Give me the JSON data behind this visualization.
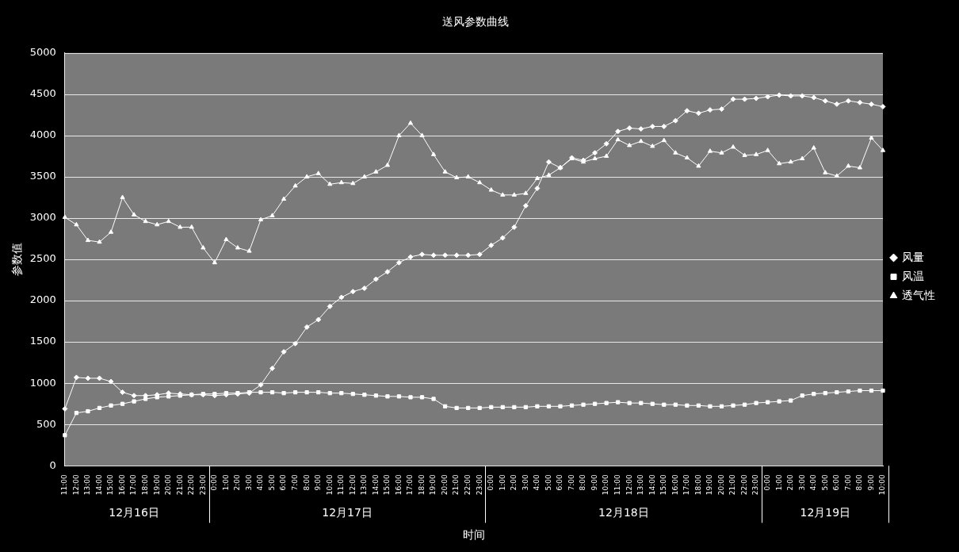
{
  "chart_data": {
    "type": "line",
    "title": "送风参数曲线",
    "xlabel": "时间",
    "ylabel": "参数值",
    "categories": [
      "11:00",
      "12:00",
      "13:00",
      "14:00",
      "15:00",
      "16:00",
      "17:00",
      "18:00",
      "19:00",
      "20:00",
      "21:00",
      "22:00",
      "23:00",
      "0:00",
      "1:00",
      "2:00",
      "3:00",
      "4:00",
      "5:00",
      "6:00",
      "7:00",
      "8:00",
      "9:00",
      "10:00",
      "11:00",
      "12:00",
      "13:00",
      "14:00",
      "15:00",
      "16:00",
      "17:00",
      "18:00",
      "19:00",
      "20:00",
      "21:00",
      "22:00",
      "23:00",
      "0:00",
      "1:00",
      "2:00",
      "3:00",
      "4:00",
      "5:00",
      "6:00",
      "7:00",
      "8:00",
      "9:00",
      "10:00",
      "11:00",
      "12:00",
      "13:00",
      "14:00",
      "15:00",
      "16:00",
      "17:00",
      "18:00",
      "19:00",
      "20:00",
      "21:00",
      "22:00",
      "23:00",
      "0:00",
      "1:00",
      "2:00",
      "3:00",
      "4:00",
      "5:00",
      "6:00",
      "7:00",
      "8:00",
      "9:00",
      "10:00"
    ],
    "annotations": [
      "12月16日",
      "12月17日",
      "12月18日",
      "12月19日"
    ],
    "series": [
      {
        "name": "风量",
        "color": "#ffffff",
        "marker": "diamond",
        "values": [
          690,
          1070,
          1060,
          1060,
          1020,
          890,
          850,
          850,
          860,
          880,
          870,
          860,
          860,
          850,
          860,
          870,
          880,
          980,
          1180,
          1380,
          1480,
          1680,
          1770,
          1930,
          2040,
          2110,
          2150,
          2260,
          2350,
          2460,
          2530,
          2560,
          2550,
          2550,
          2550,
          2550,
          2560,
          2670,
          2760,
          2890,
          3150,
          3360,
          3680,
          3610,
          3730,
          3700,
          3790,
          3900,
          4050,
          4090,
          4080,
          4110,
          4110,
          4180,
          4300,
          4270,
          4310,
          4320,
          4440,
          4440,
          4450,
          4470,
          4490,
          4480,
          4480,
          4460,
          4420,
          4380,
          4420,
          4400,
          4380,
          4350
        ]
      },
      {
        "name": "风温",
        "color": "#ffffff",
        "marker": "square",
        "values": [
          370,
          640,
          660,
          700,
          730,
          750,
          780,
          810,
          830,
          840,
          850,
          860,
          870,
          870,
          880,
          880,
          890,
          890,
          890,
          880,
          890,
          890,
          890,
          880,
          880,
          870,
          860,
          850,
          840,
          840,
          830,
          830,
          810,
          720,
          700,
          700,
          700,
          710,
          710,
          710,
          710,
          720,
          720,
          720,
          730,
          740,
          750,
          760,
          770,
          760,
          760,
          750,
          740,
          740,
          730,
          730,
          720,
          720,
          730,
          740,
          760,
          770,
          780,
          790,
          850,
          870,
          880,
          890,
          900,
          910,
          910,
          910
        ]
      },
      {
        "name": "透气性",
        "color": "#ffffff",
        "marker": "triangle",
        "values": [
          3010,
          2920,
          2730,
          2710,
          2830,
          3250,
          3040,
          2960,
          2920,
          2960,
          2890,
          2890,
          2640,
          2460,
          2740,
          2640,
          2600,
          2980,
          3030,
          3230,
          3390,
          3500,
          3540,
          3410,
          3430,
          3420,
          3500,
          3560,
          3640,
          4000,
          4150,
          4000,
          3770,
          3560,
          3490,
          3500,
          3430,
          3340,
          3280,
          3280,
          3300,
          3480,
          3520,
          3610,
          3720,
          3680,
          3720,
          3750,
          3950,
          3880,
          3930,
          3870,
          3940,
          3790,
          3730,
          3630,
          3810,
          3790,
          3860,
          3760,
          3770,
          3820,
          3660,
          3680,
          3720,
          3850,
          3550,
          3510,
          3630,
          3610,
          3970,
          3820
        ]
      }
    ],
    "ylim": [
      0,
      5000
    ],
    "yticks": [
      0,
      500,
      1000,
      1500,
      2000,
      2500,
      3000,
      3500,
      4000,
      4500,
      5000
    ],
    "grid": "y",
    "legend": "right"
  }
}
